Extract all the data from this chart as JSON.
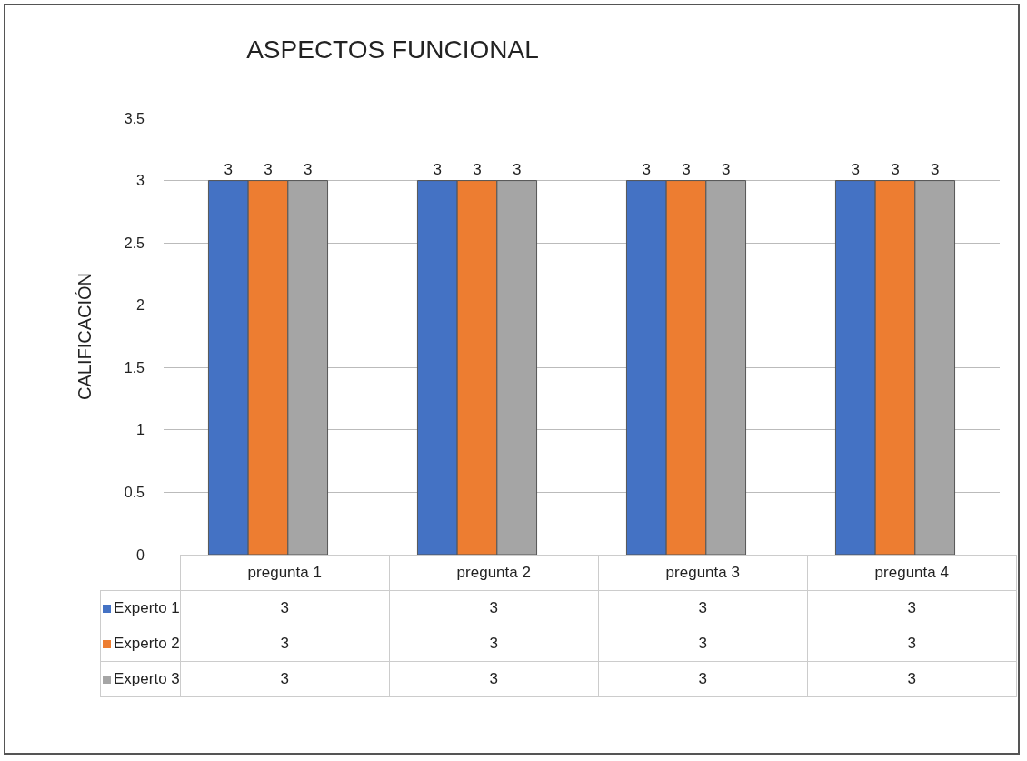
{
  "chart_data": {
    "type": "bar",
    "title": "ASPECTOS FUNCIONAL",
    "ylabel": "CALIFICACIÓN",
    "categories": [
      "pregunta 1",
      "pregunta 2",
      "pregunta 3",
      "pregunta 4"
    ],
    "series": [
      {
        "name": "Experto 1",
        "color": "#4472c4",
        "values": [
          3,
          3,
          3,
          3
        ],
        "value_labels": [
          "3",
          "3",
          "3",
          "3"
        ]
      },
      {
        "name": "Experto 2",
        "color": "#ed7d31",
        "values": [
          3,
          3,
          3,
          3
        ],
        "value_labels": [
          "3",
          "3",
          "3",
          "3"
        ]
      },
      {
        "name": "Experto 3",
        "color": "#a5a5a5",
        "values": [
          3,
          3,
          3,
          3
        ],
        "value_labels": [
          "3",
          "3",
          "3",
          "3"
        ]
      }
    ],
    "ylim": [
      0,
      3.5
    ],
    "yticks": [
      0,
      0.5,
      1,
      1.5,
      2,
      2.5,
      3,
      3.5
    ],
    "grid": "y",
    "legend": "bottom"
  }
}
